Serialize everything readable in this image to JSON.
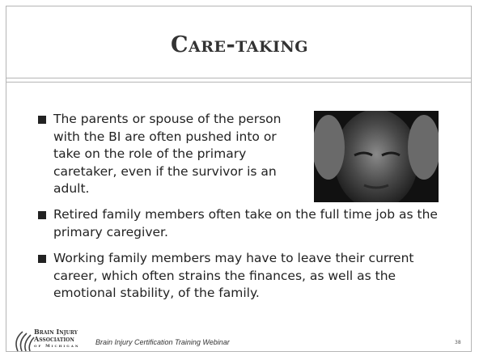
{
  "header": {
    "title": "Care-taking"
  },
  "bullets": [
    "The parents or spouse of the person with the BI are often pushed into or take on the role of the primary caretaker, even if the survivor is an adult.",
    "Retired family members often take on the full time job as the primary caregiver.",
    "Working family members may have to leave their current career, which often strains the finances, as well as the emotional stability, of the family."
  ],
  "footer": {
    "logo": [
      "Brain Injury",
      "Association",
      "of Michigan"
    ],
    "caption": "Brain Injury Certification Training Webinar",
    "page_number": "38"
  }
}
